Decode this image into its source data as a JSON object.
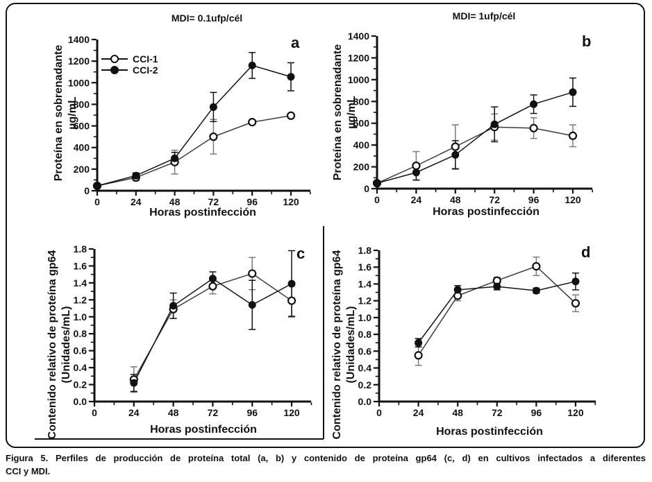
{
  "figure": {
    "caption_line1": "Figura 5. Perfiles de producción de proteína total (a, b) y contenido de proteína gp64 (c, d) en cultivos infectados a diferentes",
    "caption_line2": "CCI y MDI."
  },
  "legend": {
    "items": [
      {
        "label": "CCI-1",
        "marker": "open-circle"
      },
      {
        "label": "CCI-2",
        "marker": "filled-circle"
      }
    ]
  },
  "chart_data": [
    {
      "type": "line",
      "panel_label": "a",
      "title": "MDI= 0.1ufp/cél",
      "xlabel": "Horas postinfección",
      "ylabel_line1": "Proteína en sobrenadante",
      "ylabel_line2": "µg/mL",
      "x_hours": [
        0,
        24,
        48,
        72,
        96,
        120
      ],
      "xtick_values": [
        0,
        24,
        48,
        72,
        96,
        120
      ],
      "xtick_labels": [
        "0",
        "24",
        "48",
        "72",
        "96",
        "120"
      ],
      "xminor_step": 12,
      "xaxis_end_hours": 132,
      "ylim": [
        0,
        1400
      ],
      "ytick_values": [
        0,
        200,
        400,
        600,
        800,
        1000,
        1200,
        1400
      ],
      "ytick_labels": [
        "0",
        "200",
        "400",
        "600",
        "800",
        "1000",
        "1200",
        "1400"
      ],
      "yminor_step": 100,
      "grid": false,
      "series": [
        {
          "name": "CCI-1",
          "marker": "open",
          "y": [
            45,
            122,
            265,
            500,
            635,
            695
          ],
          "yerr": [
            0,
            30,
            110,
            160,
            0,
            0
          ]
        },
        {
          "name": "CCI-2",
          "marker": "filled",
          "y": [
            45,
            140,
            300,
            775,
            1160,
            1055
          ],
          "yerr": [
            0,
            25,
            55,
            135,
            120,
            130
          ]
        }
      ]
    },
    {
      "type": "line",
      "panel_label": "b",
      "title": "MDI= 1ufp/cél",
      "xlabel": "Horas postinfección",
      "ylabel_line1": "Proteína en sobrenadante",
      "ylabel_line2": "µg/mL",
      "x_hours": [
        0,
        24,
        48,
        72,
        96,
        120
      ],
      "xtick_values": [
        0,
        24,
        48,
        72,
        96,
        120
      ],
      "xtick_labels": [
        "0",
        "24",
        "48",
        "72",
        "96",
        "120"
      ],
      "xminor_step": 12,
      "xaxis_end_hours": 132,
      "ylim": [
        0,
        1400
      ],
      "ytick_values": [
        0,
        200,
        400,
        600,
        800,
        1000,
        1200,
        1400
      ],
      "ytick_labels": [
        "0",
        "200",
        "400",
        "600",
        "800",
        "1000",
        "1200",
        "1400"
      ],
      "yminor_step": 100,
      "grid": false,
      "series": [
        {
          "name": "CCI-1",
          "marker": "open",
          "y": [
            50,
            210,
            385,
            565,
            555,
            485
          ],
          "yerr": [
            0,
            130,
            200,
            120,
            95,
            100
          ]
        },
        {
          "name": "CCI-2",
          "marker": "filled",
          "y": [
            50,
            148,
            310,
            590,
            775,
            885
          ],
          "yerr": [
            0,
            70,
            130,
            160,
            85,
            130
          ]
        }
      ]
    },
    {
      "type": "line",
      "panel_label": "c",
      "xlabel": "Horas postinfección",
      "ylabel_line1": "Contenido relativo de proteína gp64",
      "ylabel_line2": "(Unidades/mL)",
      "x_hours": [
        24,
        48,
        72,
        96,
        120
      ],
      "xtick_values": [
        0,
        24,
        48,
        72,
        96,
        120
      ],
      "xtick_labels": [
        "0",
        "24",
        "48",
        "72",
        "96",
        "120"
      ],
      "xminor_step": 12,
      "xaxis_end_hours": 132,
      "ylim": [
        0,
        1.8
      ],
      "ytick_values": [
        0,
        0.2,
        0.4,
        0.6,
        0.8,
        1.0,
        1.2,
        1.4,
        1.6,
        1.8
      ],
      "ytick_labels": [
        "0.0",
        "0.2",
        "0.4",
        "0.6",
        "0.8",
        "1.0",
        "1.2",
        "1.4",
        "1.6",
        "1.8"
      ],
      "yminor_step": 0.1,
      "grid": false,
      "series": [
        {
          "name": "CCI-1",
          "marker": "open",
          "y": [
            0.26,
            1.09,
            1.36,
            1.51,
            1.19
          ],
          "yerr": [
            0.15,
            0.11,
            0.09,
            0.19,
            0.18
          ]
        },
        {
          "name": "CCI-2",
          "marker": "filled",
          "y": [
            0.22,
            1.13,
            1.45,
            1.14,
            1.39
          ],
          "yerr": [
            0.1,
            0.15,
            0.08,
            0.29,
            0.39
          ]
        }
      ]
    },
    {
      "type": "line",
      "panel_label": "d",
      "xlabel": "Horas postinfección",
      "ylabel_line1": "Contenido relativo de proteína gp64",
      "ylabel_line2": "(Unidades/mL)",
      "x_hours": [
        24,
        48,
        72,
        96,
        120
      ],
      "xtick_values": [
        0,
        24,
        48,
        72,
        96,
        120
      ],
      "xtick_labels": [
        "0",
        "24",
        "48",
        "72",
        "96",
        "120"
      ],
      "xminor_step": 12,
      "xaxis_end_hours": 132,
      "ylim": [
        0,
        1.8
      ],
      "ytick_values": [
        0,
        0.2,
        0.4,
        0.6,
        0.8,
        1.0,
        1.2,
        1.4,
        1.6,
        1.8
      ],
      "ytick_labels": [
        "0.0",
        "0.2",
        "0.4",
        "0.6",
        "0.8",
        "1.0",
        "1.2",
        "1.4",
        "1.6",
        "1.8"
      ],
      "yminor_step": 0.1,
      "grid": false,
      "series": [
        {
          "name": "CCI-1",
          "marker": "open",
          "y": [
            0.55,
            1.26,
            1.44,
            1.61,
            1.17
          ],
          "yerr": [
            0.12,
            0.06,
            0.04,
            0.11,
            0.1
          ]
        },
        {
          "name": "CCI-2",
          "marker": "filled",
          "y": [
            0.7,
            1.33,
            1.37,
            1.32,
            1.43
          ],
          "yerr": [
            0.05,
            0.05,
            0.04,
            0.03,
            0.1
          ]
        }
      ]
    }
  ],
  "colors": {
    "axis": "#111111",
    "filled_series": "#111111",
    "open_series_line": "#3a3a3a",
    "open_series_errorbar": "#7a7a7a",
    "background": "#ffffff"
  }
}
